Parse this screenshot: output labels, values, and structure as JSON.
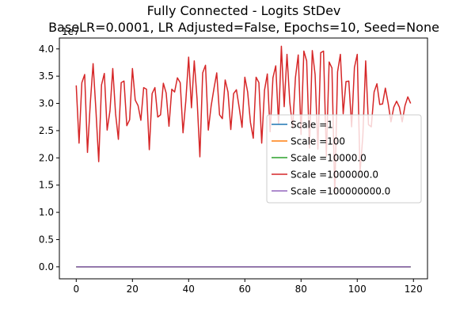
{
  "chart_data": {
    "type": "line",
    "title": "Fully Connected - Logits StDev",
    "subtitle": "BaseLR=0.0001, LR Adjusted=False, Epochs=10, Seed=None",
    "xlabel": "",
    "ylabel": "",
    "y_offset_label": "1e7",
    "xlim": [
      -6,
      125
    ],
    "ylim": [
      -0.22,
      4.2
    ],
    "y_scale_factor": 10000000,
    "x_ticks": [
      0,
      20,
      40,
      60,
      80,
      100,
      120
    ],
    "x_tick_labels": [
      "0",
      "20",
      "40",
      "60",
      "80",
      "100",
      "120"
    ],
    "y_ticks": [
      0,
      0.5,
      1,
      1.5,
      2,
      2.5,
      3,
      3.5,
      4
    ],
    "y_tick_labels": [
      "0.0",
      "0.5",
      "1.0",
      "1.5",
      "2.0",
      "2.5",
      "3.0",
      "3.5",
      "4.0"
    ],
    "grid": false,
    "legend": {
      "placement": "center-right"
    },
    "series": [
      {
        "name": "Scale =1",
        "color": "#1f77b4",
        "flat_value": 0,
        "x_start": 0,
        "x_end": 119
      },
      {
        "name": "Scale =100",
        "color": "#ff7f0e",
        "flat_value": 0,
        "x_start": 0,
        "x_end": 119
      },
      {
        "name": "Scale =10000.0",
        "color": "#2ca02c",
        "flat_value": 0,
        "x_start": 0,
        "x_end": 119
      },
      {
        "name": "Scale =1000000.0",
        "color": "#d62728",
        "x_start": 0,
        "values": [
          3.33,
          2.27,
          3.38,
          3.53,
          2.1,
          3.0,
          3.73,
          2.88,
          1.93,
          3.34,
          3.55,
          2.51,
          2.86,
          3.64,
          2.81,
          2.34,
          3.38,
          3.41,
          2.59,
          2.7,
          3.64,
          3.06,
          2.96,
          2.69,
          3.29,
          3.26,
          2.15,
          3.18,
          3.29,
          2.75,
          2.79,
          3.37,
          3.19,
          2.58,
          3.26,
          3.21,
          3.47,
          3.38,
          2.46,
          3.05,
          3.85,
          2.92,
          3.78,
          3.08,
          2.02,
          3.56,
          3.7,
          2.51,
          2.95,
          3.27,
          3.56,
          2.79,
          2.72,
          3.43,
          3.21,
          2.52,
          3.18,
          3.25,
          2.92,
          2.56,
          3.48,
          3.21,
          2.65,
          2.36,
          3.48,
          3.38,
          2.27,
          3.24,
          3.54,
          2.48,
          3.47,
          3.69,
          2.62,
          4.05,
          2.94,
          3.9,
          3.02,
          2.55,
          3.47,
          3.89,
          2.43,
          3.96,
          3.78,
          2.18,
          3.97,
          3.53,
          2.16,
          3.93,
          3.96,
          2.03,
          3.76,
          3.65,
          1.34,
          3.58,
          3.9,
          2.81,
          3.4,
          3.41,
          2.57,
          3.66,
          3.9,
          1.73,
          2.41,
          3.78,
          2.61,
          2.57,
          3.21,
          3.36,
          2.98,
          2.99,
          3.28,
          3.0,
          2.66,
          2.93,
          3.04,
          2.93,
          2.66,
          2.96,
          3.12,
          3.0
        ]
      },
      {
        "name": "Scale =100000000.0",
        "color": "#9467bd",
        "flat_value": 0,
        "x_start": 0,
        "x_end": 119
      }
    ]
  }
}
